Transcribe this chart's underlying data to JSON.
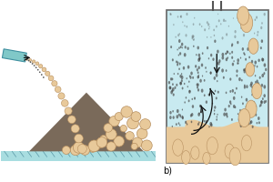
{
  "bg_color": "#ffffff",
  "floor_color": "#a8dde0",
  "pile_dark_color": "#7a6a5a",
  "pile_light_color": "#e8c99a",
  "particle_large_color": "#e8c99a",
  "particle_large_edge": "#b89060",
  "particle_small_color": "#555555",
  "chute_color": "#80c8c8",
  "chute_edge": "#4090a0",
  "container_bg": "#c8eaf0",
  "container_edge": "#666666",
  "fine_dot_color": "#444444",
  "sand_bottom_color": "#e8c99a",
  "arrow_color": "#111111",
  "label_b": "b)",
  "label_fontsize": 7
}
